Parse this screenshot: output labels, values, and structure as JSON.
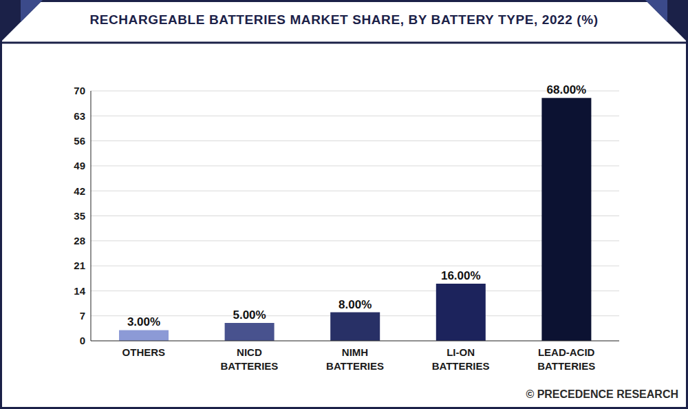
{
  "chart_data": {
    "type": "bar",
    "title": "RECHARGEABLE BATTERIES MARKET SHARE, BY BATTERY TYPE, 2022 (%)",
    "categories": [
      "OTHERS",
      "NICD BATTERIES",
      "NIMH BATTERIES",
      "LI-ON BATTERIES",
      "LEAD-ACID BATTERIES"
    ],
    "values": [
      3,
      5,
      8,
      16,
      68
    ],
    "value_labels": [
      "3.00%",
      "5.00%",
      "8.00%",
      "16.00%",
      "68.00%"
    ],
    "colors": [
      "#8c9ad6",
      "#48528e",
      "#283066",
      "#1c235c",
      "#0c1232"
    ],
    "ylim": [
      0,
      70
    ],
    "yticks": [
      0,
      7,
      14,
      21,
      28,
      35,
      42,
      49,
      56,
      63,
      70
    ],
    "grid": true,
    "data_labels": true,
    "annotations": [
      "© PRECEDENCE RESEARCH"
    ]
  }
}
